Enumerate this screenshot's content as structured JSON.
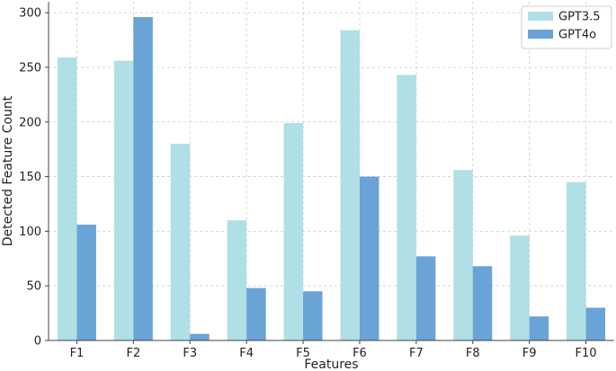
{
  "chart_data": {
    "type": "bar",
    "title": "",
    "xlabel": "Features",
    "ylabel": "Detected Feature Count",
    "categories": [
      "F1",
      "F2",
      "F3",
      "F4",
      "F5",
      "F6",
      "F7",
      "F8",
      "F9",
      "F10"
    ],
    "series": [
      {
        "name": "GPT3.5",
        "color": "#b0dfe5",
        "values": [
          259,
          256,
          180,
          110,
          199,
          284,
          243,
          156,
          96,
          145
        ]
      },
      {
        "name": "GPT4o",
        "color": "#6aa3d6",
        "values": [
          106,
          296,
          6,
          48,
          45,
          150,
          77,
          68,
          22,
          30
        ]
      }
    ],
    "ylim": [
      0,
      310
    ],
    "yticks": [
      0,
      50,
      100,
      150,
      200,
      250,
      300
    ],
    "grid": true,
    "legend_position": "top-right"
  }
}
